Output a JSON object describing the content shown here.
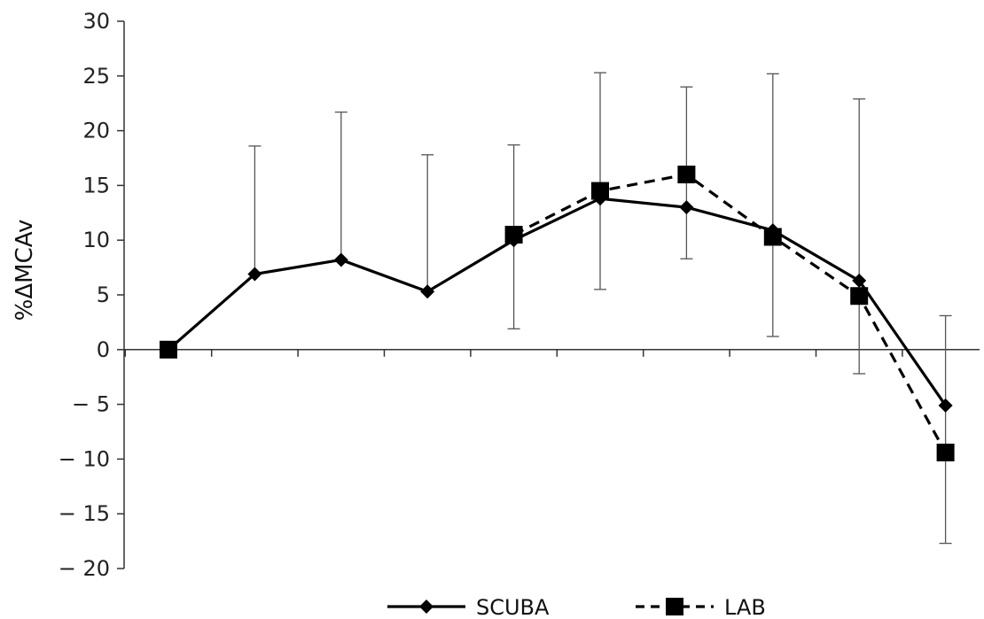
{
  "chart_data": {
    "type": "line",
    "title": "",
    "xlabel": "",
    "ylabel": "%ΔMCAv",
    "ylim": [
      -20,
      30
    ],
    "yticks": [
      30,
      25,
      20,
      15,
      10,
      5,
      0,
      -5,
      -10,
      -15,
      -20
    ],
    "ytick_labels": [
      "30",
      "25",
      "20",
      "15",
      "10",
      "5",
      "0",
      "− 5",
      "− 10",
      "− 15",
      "− 20"
    ],
    "x": [
      1,
      2,
      3,
      4,
      5,
      6,
      7,
      8,
      9,
      10
    ],
    "grid": false,
    "legend_position": "bottom",
    "series": [
      {
        "name": "SCUBA",
        "marker": "diamond",
        "line_style": "solid",
        "color": "#000000",
        "values": [
          0,
          6.9,
          8.2,
          5.3,
          10.0,
          13.8,
          13.0,
          10.9,
          6.3,
          -5.1
        ],
        "error_upper": [
          null,
          18.6,
          21.7,
          17.8,
          null,
          null,
          null,
          25.2,
          null,
          null
        ],
        "error_lower": [
          null,
          null,
          null,
          null,
          null,
          null,
          null,
          1.2,
          null,
          null
        ]
      },
      {
        "name": "LAB",
        "marker": "square",
        "line_style": "dashed",
        "color": "#000000",
        "values": [
          0,
          null,
          null,
          null,
          10.5,
          14.5,
          16.0,
          10.3,
          4.9,
          -9.4
        ],
        "error_upper": [
          null,
          null,
          null,
          null,
          18.7,
          25.3,
          24.0,
          null,
          22.9,
          3.1
        ],
        "error_lower": [
          null,
          null,
          null,
          null,
          1.9,
          5.5,
          8.3,
          null,
          -2.2,
          -17.7
        ]
      }
    ]
  }
}
